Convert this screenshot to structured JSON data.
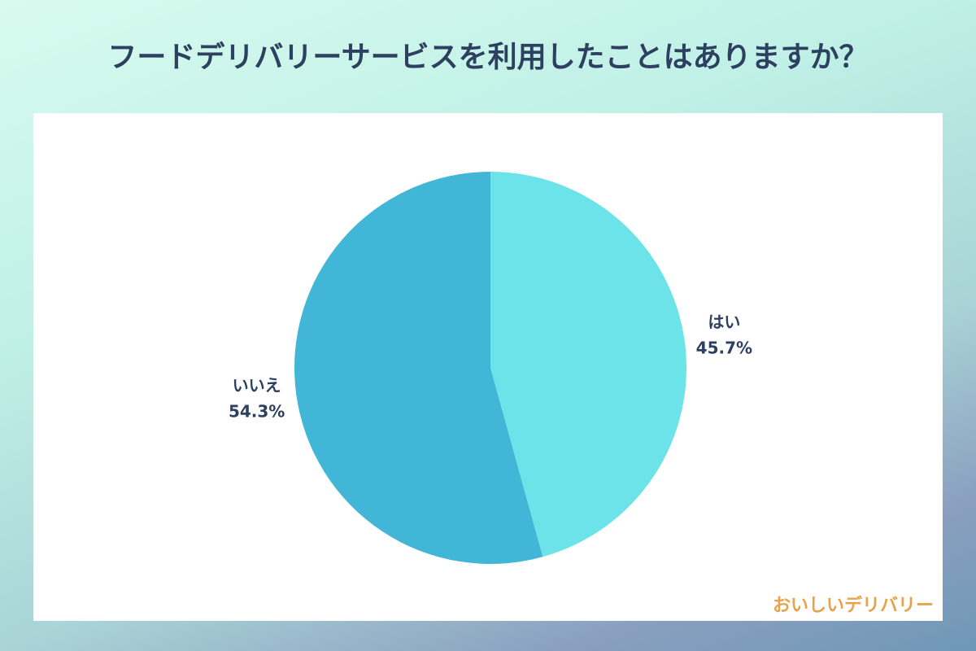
{
  "chart_data": {
    "type": "pie",
    "title": "フードデリバリーサービスを利用したことはありますか？",
    "categories": [
      "はい",
      "いいえ"
    ],
    "values": [
      45.7,
      54.3
    ],
    "value_labels": [
      "45.7%",
      "54.3%"
    ],
    "colors": [
      "#6be3e8",
      "#42b6d6"
    ]
  },
  "brand": "おいしいデリバリー"
}
